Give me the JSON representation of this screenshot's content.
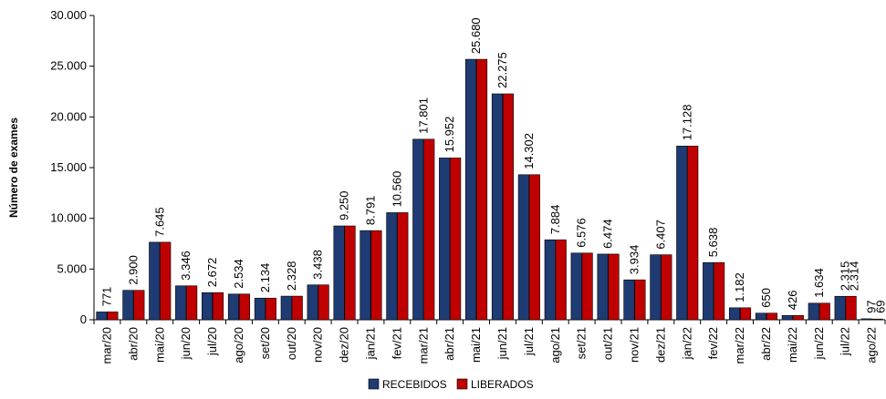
{
  "chart_data": {
    "type": "bar",
    "title": "",
    "xlabel": "",
    "ylabel": "Número de exames",
    "ylim": [
      0,
      30000
    ],
    "yticks": [
      0,
      5000,
      10000,
      15000,
      20000,
      25000,
      30000
    ],
    "ytick_labels": [
      "0",
      "5.000",
      "10.000",
      "15.000",
      "20.000",
      "25.000",
      "30.000"
    ],
    "grid": false,
    "legend_position": "bottom-center",
    "categories": [
      "mar/20",
      "abr/20",
      "mai/20",
      "jun/20",
      "jul/20",
      "ago/20",
      "set/20",
      "out/20",
      "nov/20",
      "dez/20",
      "jan/21",
      "fev/21",
      "mar/21",
      "abr/21",
      "mai/21",
      "jun/21",
      "jul/21",
      "ago/21",
      "set/21",
      "out/21",
      "nov/21",
      "dez/21",
      "jan/22",
      "fev/22",
      "mar/22",
      "abr/22",
      "mai/22",
      "jun/22",
      "jul/22",
      "ago/22"
    ],
    "series": [
      {
        "name": "RECEBIDOS",
        "color": "#1F3B73",
        "values": [
          771,
          2900,
          7645,
          3346,
          2672,
          2534,
          2134,
          2328,
          3438,
          9250,
          8791,
          10560,
          17801,
          15952,
          25680,
          22275,
          14302,
          7884,
          6576,
          6474,
          3934,
          6407,
          17128,
          5638,
          1182,
          650,
          426,
          1634,
          2315,
          97
        ]
      },
      {
        "name": "LIBERADOS",
        "color": "#C00000",
        "values": [
          771,
          2900,
          7645,
          3346,
          2672,
          2534,
          2134,
          2328,
          3438,
          9250,
          8791,
          10560,
          17801,
          15952,
          25680,
          22275,
          14302,
          7884,
          6576,
          6474,
          3934,
          6407,
          17128,
          5638,
          1182,
          650,
          426,
          1634,
          2314,
          69
        ]
      }
    ],
    "data_labels": [
      "771",
      "2.900",
      "7.645",
      "3.346",
      "2.672",
      "2.534",
      "2.134",
      "2.328",
      "3.438",
      "9.250",
      "8.791",
      "10.560",
      "17.801",
      "15.952",
      "25.680",
      "22.275",
      "14.302",
      "7.884",
      "6.576",
      "6.474",
      "3.934",
      "6.407",
      "17.128",
      "5.638",
      "1.182",
      "650",
      "426",
      "1.634",
      "2.315",
      "97"
    ],
    "extra_data_labels": [
      {
        "category": "jul/22",
        "text": "2.314"
      },
      {
        "category": "ago/22",
        "text": "69"
      }
    ]
  }
}
